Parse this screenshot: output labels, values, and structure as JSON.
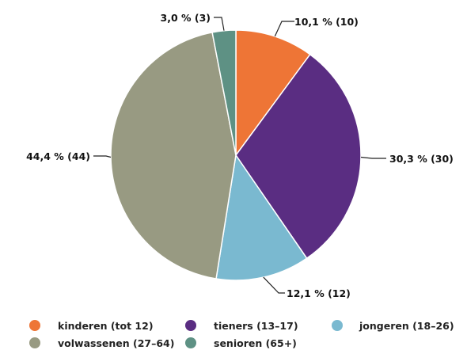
{
  "chart_data": {
    "type": "pie",
    "slices": [
      {
        "label": "kinderen (tot 12)",
        "value": 10,
        "percent": "10,1 %",
        "data_label": "10,1 % (10)",
        "color": "#ee7536"
      },
      {
        "label": "tieners (13–17)",
        "value": 30,
        "percent": "30,3 %",
        "data_label": "30,3 % (30)",
        "color": "#5a2d82"
      },
      {
        "label": "jongeren (18–26)",
        "value": 12,
        "percent": "12,1 %",
        "data_label": "12,1 % (12)",
        "color": "#7ab9d0"
      },
      {
        "label": "volwassenen (27–64)",
        "value": 44,
        "percent": "44,4 %",
        "data_label": "44,4 % (44)",
        "color": "#989a82"
      },
      {
        "label": "senioren (65+)",
        "value": 3,
        "percent": "3,0 %",
        "data_label": "3,0 % (3)",
        "color": "#5e9184"
      }
    ],
    "start_angle": "12 o'clock",
    "direction": "clockwise",
    "legend_position": "bottom"
  }
}
